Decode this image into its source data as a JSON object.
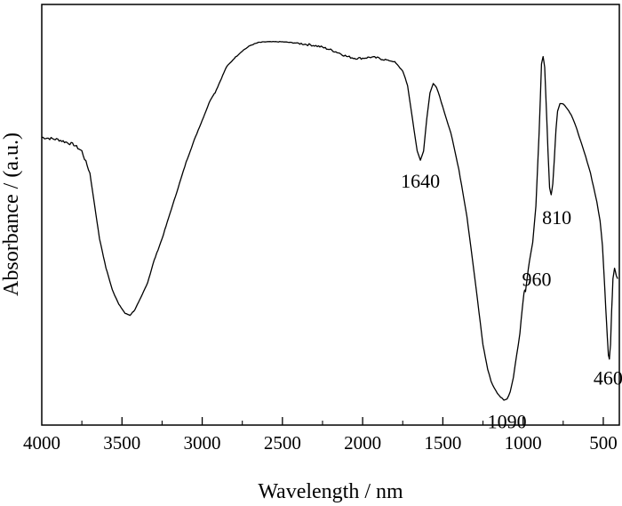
{
  "chart_data": {
    "type": "line",
    "xlabel": "Wavelength / nm",
    "ylabel": "Absorbance / (a.u.)",
    "xlim": [
      4000,
      400
    ],
    "ylim": [
      0,
      1
    ],
    "x_reversed": true,
    "y_ticks_shown": false,
    "grid": false,
    "x_ticks": [
      4000,
      3500,
      3000,
      2500,
      2000,
      1500,
      1000,
      500
    ],
    "x_tick_labels": [
      "4000",
      "3500",
      "3000",
      "2500",
      "2000",
      "1500",
      "1000",
      "500"
    ],
    "x_minor_ticks": [
      3750,
      3250,
      2750,
      2250,
      1750,
      1250,
      750
    ],
    "series": [
      {
        "name": "",
        "color": "#000000",
        "x": [
          4000,
          3900,
          3800,
          3750,
          3700,
          3670,
          3640,
          3600,
          3560,
          3520,
          3480,
          3450,
          3420,
          3380,
          3340,
          3300,
          3250,
          3200,
          3150,
          3100,
          3050,
          3000,
          2950,
          2930,
          2920,
          2880,
          2850,
          2800,
          2750,
          2700,
          2650,
          2600,
          2550,
          2500,
          2450,
          2400,
          2350,
          2300,
          2250,
          2200,
          2150,
          2100,
          2050,
          2000,
          1950,
          1900,
          1850,
          1800,
          1750,
          1720,
          1700,
          1680,
          1660,
          1640,
          1620,
          1600,
          1580,
          1560,
          1540,
          1520,
          1500,
          1450,
          1400,
          1350,
          1300,
          1250,
          1220,
          1200,
          1180,
          1160,
          1140,
          1120,
          1100,
          1080,
          1060,
          1040,
          1020,
          1005,
          995,
          990,
          985,
          975,
          960,
          940,
          920,
          900,
          885,
          875,
          865,
          855,
          845,
          835,
          825,
          815,
          805,
          795,
          785,
          770,
          750,
          730,
          700,
          680,
          650,
          620,
          600,
          580,
          560,
          540,
          520,
          505,
          495,
          485,
          475,
          468,
          462,
          455,
          448,
          440,
          430,
          420,
          410
        ],
        "y": [
          0.738,
          0.732,
          0.718,
          0.7,
          0.64,
          0.55,
          0.46,
          0.38,
          0.32,
          0.28,
          0.255,
          0.25,
          0.265,
          0.3,
          0.34,
          0.4,
          0.46,
          0.53,
          0.6,
          0.67,
          0.73,
          0.785,
          0.84,
          0.855,
          0.86,
          0.9,
          0.93,
          0.955,
          0.975,
          0.99,
          0.998,
          1.0,
          1.0,
          1.0,
          0.998,
          0.996,
          0.993,
          0.99,
          0.985,
          0.978,
          0.97,
          0.96,
          0.955,
          0.955,
          0.958,
          0.955,
          0.95,
          0.945,
          0.92,
          0.88,
          0.82,
          0.76,
          0.7,
          0.675,
          0.7,
          0.79,
          0.86,
          0.885,
          0.875,
          0.85,
          0.82,
          0.75,
          0.65,
          0.52,
          0.35,
          0.17,
          0.1,
          0.07,
          0.05,
          0.035,
          0.025,
          0.018,
          0.02,
          0.04,
          0.08,
          0.14,
          0.2,
          0.27,
          0.31,
          0.32,
          0.315,
          0.35,
          0.4,
          0.45,
          0.55,
          0.75,
          0.94,
          0.96,
          0.93,
          0.82,
          0.7,
          0.6,
          0.58,
          0.61,
          0.68,
          0.76,
          0.81,
          0.83,
          0.83,
          0.82,
          0.8,
          0.78,
          0.74,
          0.7,
          0.67,
          0.64,
          0.6,
          0.56,
          0.51,
          0.44,
          0.36,
          0.27,
          0.19,
          0.14,
          0.13,
          0.17,
          0.26,
          0.35,
          0.38,
          0.36,
          0.35
        ]
      }
    ],
    "annotations": [
      {
        "text": "1640",
        "x": 1640,
        "y": 0.6
      },
      {
        "text": "810",
        "x": 790,
        "y": 0.5
      },
      {
        "text": "960",
        "x": 915,
        "y": 0.33
      },
      {
        "text": "1090",
        "x": 1100,
        "y": -0.06
      },
      {
        "text": "460",
        "x": 470,
        "y": 0.06
      }
    ]
  }
}
